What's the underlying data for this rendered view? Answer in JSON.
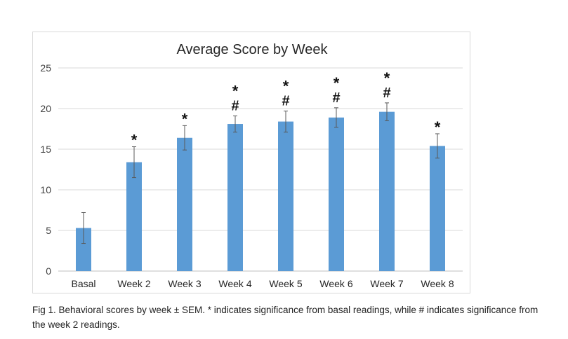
{
  "chart_data": {
    "type": "bar",
    "title": "Average Score by Week",
    "xlabel": "",
    "ylabel": "",
    "categories": [
      "Basal",
      "Week 2",
      "Week 3",
      "Week 4",
      "Week 5",
      "Week 6",
      "Week 7",
      "Week 8"
    ],
    "values": [
      5.3,
      13.4,
      16.4,
      18.1,
      18.4,
      18.9,
      19.6,
      15.4
    ],
    "error": [
      1.9,
      1.9,
      1.5,
      1.0,
      1.3,
      1.2,
      1.1,
      1.5
    ],
    "significance": [
      "",
      "*",
      "*",
      "* #",
      "* #",
      "* #",
      "* #",
      "*"
    ],
    "ylim": [
      0,
      25
    ],
    "yticks": [
      0,
      5,
      10,
      15,
      20,
      25
    ],
    "grid": true,
    "bar_color": "#5b9bd5",
    "grid_color": "#d9d9d9"
  },
  "caption": "Fig 1. Behavioral scores by week ± SEM. * indicates significance from basal readings, while # indicates significance from the week 2 readings."
}
